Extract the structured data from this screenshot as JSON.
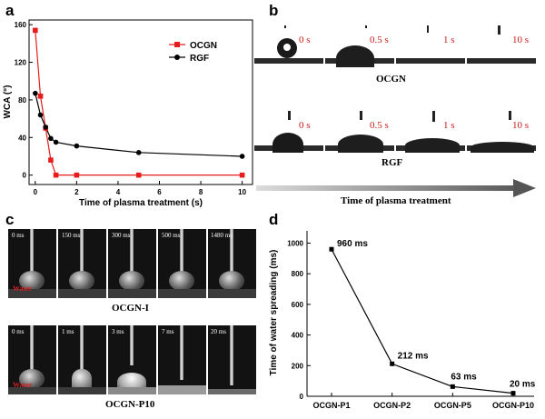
{
  "panels": {
    "a": "a",
    "b": "b",
    "c": "c",
    "d": "d"
  },
  "chart_data": [
    {
      "type": "line",
      "panel": "a",
      "title": "",
      "xlabel": "Time of plasma treatment (s)",
      "ylabel": "WCA (°)",
      "xlim": [
        -0.3,
        10.5
      ],
      "ylim": [
        -10,
        165
      ],
      "xticks": [
        0,
        2,
        4,
        6,
        8,
        10
      ],
      "yticks": [
        0,
        40,
        80,
        120,
        160
      ],
      "legend_position": "top-right",
      "series": [
        {
          "name": "OCGN",
          "color": "#e81c1c",
          "marker": "square",
          "x": [
            0,
            0.25,
            0.5,
            0.75,
            1,
            2,
            5,
            10
          ],
          "y": [
            154,
            84,
            50,
            16,
            0,
            0,
            0,
            0
          ]
        },
        {
          "name": "RGF",
          "color": "#000000",
          "marker": "circle",
          "x": [
            0,
            0.25,
            0.5,
            0.75,
            1,
            2,
            5,
            10
          ],
          "y": [
            87,
            64,
            51,
            39,
            35,
            31,
            24,
            20
          ]
        }
      ]
    },
    {
      "type": "line",
      "panel": "d",
      "title": "",
      "xlabel": "",
      "ylabel": "Time of water spreading (ms)",
      "ylim": [
        0,
        1080
      ],
      "yticks": [
        0,
        200,
        400,
        600,
        800,
        1000
      ],
      "categories": [
        "OCGN-P1",
        "OCGN-P2",
        "OCGN-P5",
        "OCGN-P10"
      ],
      "values": [
        960,
        212,
        63,
        20
      ],
      "data_labels": [
        "960 ms",
        "212 ms",
        "63 ms",
        "20 ms"
      ]
    }
  ],
  "panel_b": {
    "rows": [
      {
        "sample": "OCGN",
        "times": [
          "0 s",
          "0.5 s",
          "1 s",
          "10 s"
        ]
      },
      {
        "sample": "RGF",
        "times": [
          "0 s",
          "0.5 s",
          "1 s",
          "10 s"
        ]
      }
    ],
    "arrow_label": "Time of plasma treatment"
  },
  "panel_c": {
    "rows": [
      {
        "sample": "OCGN-I",
        "times": [
          "0 ms",
          "150 ms",
          "300 ms",
          "500 ms",
          "1480 ms"
        ],
        "water_label": "Water"
      },
      {
        "sample": "OCGN-P10",
        "times": [
          "0 ms",
          "1 ms",
          "3 ms",
          "7 ms",
          "20 ms"
        ],
        "water_label": "Water"
      }
    ]
  }
}
